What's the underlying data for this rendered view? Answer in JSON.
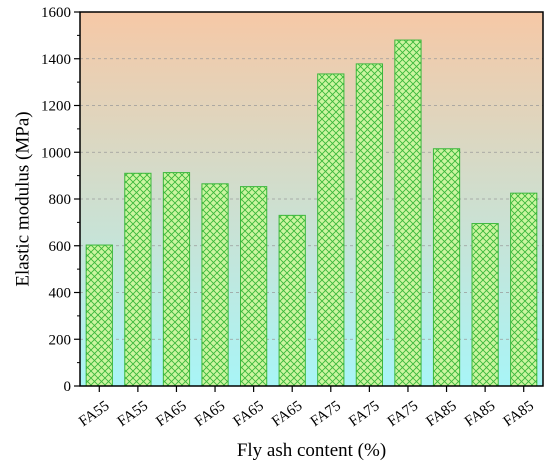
{
  "chart_data": {
    "type": "bar",
    "categories": [
      "FA55",
      "FA55",
      "FA65",
      "FA65",
      "FA65",
      "FA65",
      "FA75",
      "FA75",
      "FA75",
      "FA85",
      "FA85",
      "FA85"
    ],
    "values": [
      603,
      910,
      913,
      865,
      853,
      730,
      1335,
      1378,
      1480,
      1015,
      695,
      825
    ],
    "title": "",
    "xlabel": "Fly ash content (%)",
    "ylabel": "Elastic modulus (MPa)",
    "ylim": [
      0,
      1600
    ],
    "yticks": [
      0,
      200,
      400,
      600,
      800,
      1000,
      1200,
      1400,
      1600
    ],
    "grid": "horizontal dashed",
    "colors": {
      "bar_fill": "#ccf5a0",
      "bar_hatch": "#3cb83c",
      "background_top": "#f6c8a6",
      "background_bottom": "#a8f5f7",
      "grid": "#9a9a9a",
      "axis": "#000000"
    }
  }
}
